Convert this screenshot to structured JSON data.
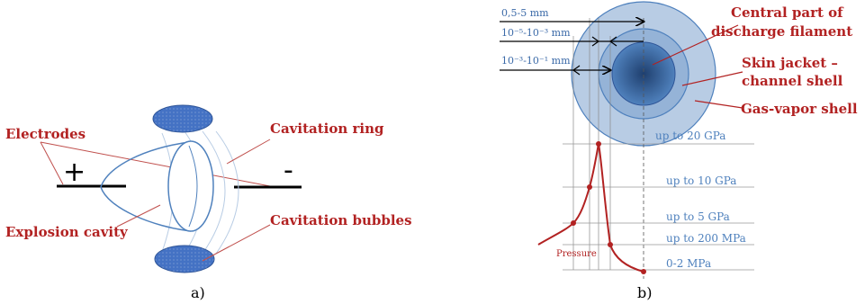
{
  "panel_a": {
    "caption": "a)",
    "labels": {
      "electrodes": "Electrodes",
      "cavitation_ring": "Cavitation ring",
      "cavitation_bubbles": "Cavitation bubbles",
      "explosion_cavity": "Explosion cavity"
    },
    "polarity": {
      "plus": "+",
      "minus": "-"
    },
    "colors": {
      "label_red": "#b22222",
      "shape_blue": "#4f81bd",
      "bubble_fill": "#4472c4"
    }
  },
  "panel_b": {
    "caption": "b)",
    "labels": {
      "central_part": [
        "Central part of",
        "discharge filament"
      ],
      "skin_jacket": [
        "Skin jacket –",
        "channel shell"
      ],
      "gas_vapor_shell": "Gas-vapor shell",
      "pressure": "Pressure"
    },
    "dimensions": [
      "0,5-5 mm",
      "10⁻⁵-10⁻³ mm",
      "10⁻³-10⁻¹ mm"
    ],
    "pressure_levels": [
      "up to 20 GPa",
      "up to 10 GPa",
      "up to 5 GPa",
      "up to 200 MPa",
      "0-2 MPa"
    ],
    "colors": {
      "outer_shell": "#b8cce4",
      "skin": "#95b3d7",
      "core": "#1f4e79",
      "curve": "#b22222"
    }
  }
}
